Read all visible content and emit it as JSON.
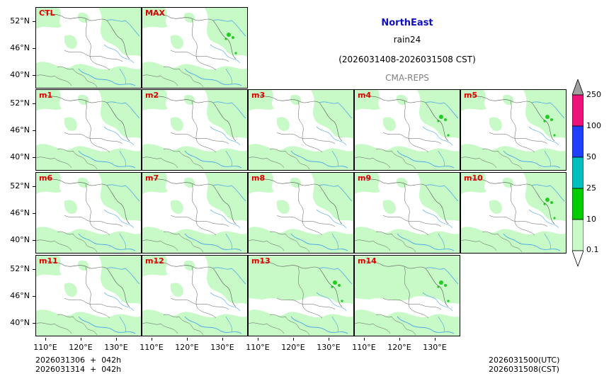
{
  "title": {
    "region": "NorthEast",
    "variable": "rain24",
    "time_range": "(2026031408-2026031508 CST)",
    "model": "CMA-REPS"
  },
  "panels": [
    "CTL",
    "MAX",
    "m1",
    "m2",
    "m3",
    "m4",
    "m5",
    "m6",
    "m7",
    "m8",
    "m9",
    "m10",
    "m11",
    "m12",
    "m13",
    "m14"
  ],
  "y_axis_labels": [
    "52°N",
    "46°N",
    "40°N"
  ],
  "x_axis_labels": [
    "110°E",
    "120°E",
    "130°E"
  ],
  "colorbar": {
    "levels": [
      "0.1",
      "10",
      "25",
      "50",
      "100",
      "250"
    ],
    "colors": [
      "#c8fac8",
      "#00cc00",
      "#00bfbf",
      "#2040ff",
      "#f0127a",
      "#a0a0a0"
    ]
  },
  "footer": {
    "left_line1": "2026031306  +  042h",
    "left_line2": "2026031314  +  042h",
    "right_line1": "2026031500(UTC)",
    "right_line2": "2026031508(CST)"
  },
  "map_colors": {
    "rain_light": "#c8fac8",
    "rain_heavy": "#22cc22",
    "border": "#555555",
    "river": "#3fa0e6"
  }
}
